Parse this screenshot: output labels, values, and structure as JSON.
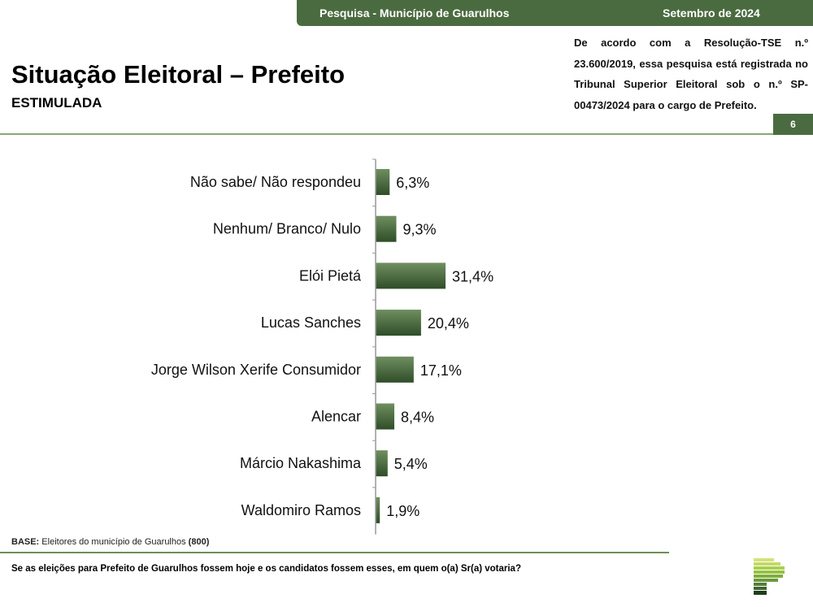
{
  "header": {
    "survey": "Pesquisa - Município de Guarulhos",
    "date": "Setembro de 2024",
    "page": "6"
  },
  "title": "Situação Eleitoral – Prefeito",
  "subtitle": "ESTIMULADA",
  "notice": "De acordo com a Resolução-TSE n.º 23.600/2019, essa pesquisa está registrada no Tribunal Superior Eleitoral sob o n.º SP-00473/2024 para o cargo de Prefeito.",
  "base": {
    "label": "BASE:",
    "text": " Eleitores do município de Guarulhos ",
    "count": "(800)"
  },
  "question": "Se as eleições para Prefeito de Guarulhos fossem hoje e os candidatos fossem esses, em quem o(a) Sr(a) votaria?",
  "colors": {
    "bar": "#4a6b3f"
  },
  "chart_data": {
    "type": "bar",
    "orientation": "horizontal",
    "categories": [
      "Não sabe/ Não respondeu",
      "Nenhum/ Branco/ Nulo",
      "Elói Pietá",
      "Lucas Sanches",
      "Jorge Wilson Xerife Consumidor",
      "Alencar",
      "Márcio Nakashima",
      "Waldomiro Ramos"
    ],
    "values": [
      6.3,
      9.3,
      31.4,
      20.4,
      17.1,
      8.4,
      5.4,
      1.9
    ],
    "labels": [
      "6,3%",
      "9,3%",
      "31,4%",
      "20,4%",
      "17,1%",
      "8,4%",
      "5,4%",
      "1,9%"
    ],
    "xlim": [
      0,
      100
    ],
    "unit": "%"
  }
}
